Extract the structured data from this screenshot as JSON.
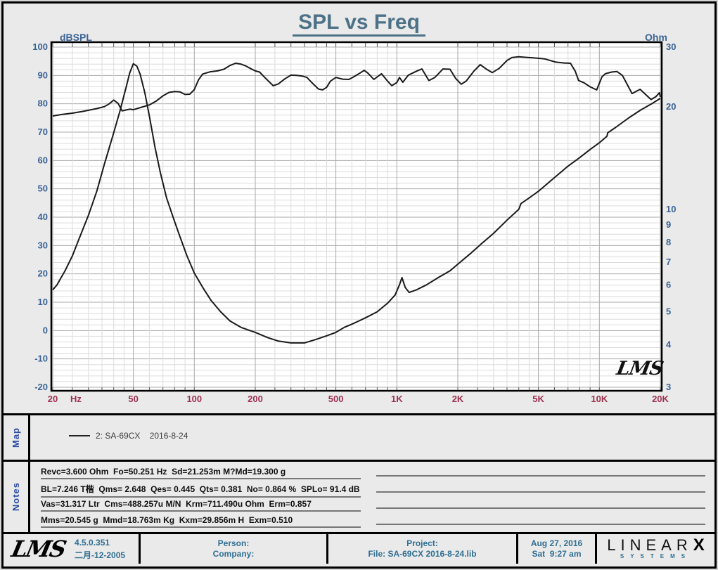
{
  "chart": {
    "title": "SPL vs Freq",
    "left_axis_label": "dBSPL",
    "right_axis_label": "Ohm",
    "signature": "LMS"
  },
  "chart_data": {
    "type": "line",
    "title": "SPL vs Freq",
    "x_axis": {
      "scale": "log",
      "min": 20,
      "max": 20000,
      "unit": "Hz",
      "tick_values": [
        20,
        50,
        100,
        200,
        500,
        1000,
        2000,
        5000,
        10000,
        20000
      ],
      "tick_labels": [
        "20",
        "50",
        "100",
        "200",
        "500",
        "1K",
        "2K",
        "5K",
        "10K",
        "20K"
      ]
    },
    "y_left": {
      "label": "dBSPL",
      "scale": "linear",
      "min": -20,
      "max": 100,
      "major_step": 10,
      "minor_step": 2,
      "ticks": [
        100,
        90,
        80,
        70,
        60,
        50,
        40,
        30,
        20,
        10,
        0,
        -10,
        -20
      ]
    },
    "y_right": {
      "label": "Ohm",
      "scale": "log",
      "min": 3,
      "max": 30,
      "ticks": [
        30,
        20,
        10,
        9,
        8,
        7,
        6,
        5,
        4,
        3
      ]
    },
    "grid": true,
    "legend_position": "map-panel-below-chart",
    "series": [
      {
        "name": "SPL (dBSPL, left axis)",
        "axis": "left",
        "points": [
          [
            20,
            75.7
          ],
          [
            22,
            76.2
          ],
          [
            25,
            76.7
          ],
          [
            28,
            77.3
          ],
          [
            30,
            77.7
          ],
          [
            33,
            78.3
          ],
          [
            36,
            79.0
          ],
          [
            38,
            80.0
          ],
          [
            40,
            81.3
          ],
          [
            42,
            80.2
          ],
          [
            44,
            77.5
          ],
          [
            46,
            77.8
          ],
          [
            48,
            78.1
          ],
          [
            50,
            77.9
          ],
          [
            55,
            78.8
          ],
          [
            60,
            79.6
          ],
          [
            65,
            81.0
          ],
          [
            70,
            82.8
          ],
          [
            75,
            84.0
          ],
          [
            80,
            84.3
          ],
          [
            85,
            84.2
          ],
          [
            90,
            83.3
          ],
          [
            95,
            83.4
          ],
          [
            100,
            85.0
          ],
          [
            105,
            88.5
          ],
          [
            110,
            90.5
          ],
          [
            120,
            91.3
          ],
          [
            130,
            91.6
          ],
          [
            140,
            92.2
          ],
          [
            150,
            93.5
          ],
          [
            160,
            94.3
          ],
          [
            170,
            94.0
          ],
          [
            180,
            93.3
          ],
          [
            190,
            92.4
          ],
          [
            200,
            91.6
          ],
          [
            210,
            91.2
          ],
          [
            225,
            89.0
          ],
          [
            245,
            86.4
          ],
          [
            260,
            87.0
          ],
          [
            280,
            88.8
          ],
          [
            300,
            90.1
          ],
          [
            320,
            90.0
          ],
          [
            340,
            89.8
          ],
          [
            360,
            89.3
          ],
          [
            380,
            87.5
          ],
          [
            410,
            85.2
          ],
          [
            430,
            84.9
          ],
          [
            450,
            85.8
          ],
          [
            470,
            88.0
          ],
          [
            500,
            89.3
          ],
          [
            540,
            88.7
          ],
          [
            580,
            88.6
          ],
          [
            620,
            89.7
          ],
          [
            660,
            90.9
          ],
          [
            690,
            91.8
          ],
          [
            720,
            90.8
          ],
          [
            770,
            88.6
          ],
          [
            840,
            90.6
          ],
          [
            900,
            88.0
          ],
          [
            945,
            86.4
          ],
          [
            1000,
            87.5
          ],
          [
            1030,
            89.3
          ],
          [
            1070,
            87.6
          ],
          [
            1140,
            90.1
          ],
          [
            1250,
            91.5
          ],
          [
            1330,
            92.3
          ],
          [
            1440,
            88.2
          ],
          [
            1540,
            89.3
          ],
          [
            1600,
            90.5
          ],
          [
            1690,
            92.3
          ],
          [
            1830,
            92.2
          ],
          [
            1950,
            89.0
          ],
          [
            2080,
            86.9
          ],
          [
            2200,
            88.0
          ],
          [
            2400,
            91.5
          ],
          [
            2580,
            93.8
          ],
          [
            2800,
            92.0
          ],
          [
            2960,
            91.0
          ],
          [
            3200,
            92.5
          ],
          [
            3500,
            95.3
          ],
          [
            3700,
            96.3
          ],
          [
            4000,
            96.6
          ],
          [
            4300,
            96.4
          ],
          [
            4700,
            96.2
          ],
          [
            5100,
            96.0
          ],
          [
            5400,
            95.8
          ],
          [
            6100,
            94.7
          ],
          [
            6700,
            94.4
          ],
          [
            7200,
            94.3
          ],
          [
            7600,
            91.5
          ],
          [
            7900,
            88.2
          ],
          [
            8400,
            87.4
          ],
          [
            9000,
            86.0
          ],
          [
            9700,
            84.9
          ],
          [
            10300,
            89.5
          ],
          [
            10700,
            90.6
          ],
          [
            11500,
            91.2
          ],
          [
            12200,
            91.4
          ],
          [
            13000,
            90.0
          ],
          [
            13800,
            86.5
          ],
          [
            14500,
            83.6
          ],
          [
            15300,
            84.5
          ],
          [
            15900,
            85.1
          ],
          [
            16800,
            83.5
          ],
          [
            18000,
            81.5
          ],
          [
            19000,
            82.5
          ],
          [
            19800,
            83.9
          ],
          [
            20000,
            82.4
          ]
        ]
      },
      {
        "name": "Impedance (Ohm, right axis)",
        "axis": "right",
        "points": [
          [
            20,
            5.8
          ],
          [
            21,
            6.0
          ],
          [
            22,
            6.3
          ],
          [
            23,
            6.6
          ],
          [
            25,
            7.3
          ],
          [
            27,
            8.2
          ],
          [
            30,
            9.6
          ],
          [
            33,
            11.3
          ],
          [
            36,
            13.6
          ],
          [
            40,
            16.8
          ],
          [
            43,
            19.5
          ],
          [
            46,
            22.8
          ],
          [
            48,
            25.2
          ],
          [
            50,
            26.8
          ],
          [
            52,
            26.4
          ],
          [
            54,
            25.0
          ],
          [
            57,
            22.0
          ],
          [
            60,
            18.8
          ],
          [
            64,
            15.2
          ],
          [
            68,
            12.8
          ],
          [
            73,
            10.8
          ],
          [
            79,
            9.4
          ],
          [
            85,
            8.3
          ],
          [
            92,
            7.3
          ],
          [
            100,
            6.5
          ],
          [
            110,
            5.9
          ],
          [
            121,
            5.4
          ],
          [
            135,
            5.0
          ],
          [
            150,
            4.7
          ],
          [
            170,
            4.5
          ],
          [
            200,
            4.35
          ],
          [
            230,
            4.2
          ],
          [
            260,
            4.1
          ],
          [
            300,
            4.05
          ],
          [
            350,
            4.05
          ],
          [
            400,
            4.15
          ],
          [
            450,
            4.25
          ],
          [
            500,
            4.35
          ],
          [
            550,
            4.5
          ],
          [
            600,
            4.6
          ],
          [
            650,
            4.7
          ],
          [
            700,
            4.8
          ],
          [
            800,
            5.0
          ],
          [
            900,
            5.3
          ],
          [
            980,
            5.6
          ],
          [
            1030,
            6.0
          ],
          [
            1060,
            6.3
          ],
          [
            1100,
            5.9
          ],
          [
            1150,
            5.7
          ],
          [
            1250,
            5.8
          ],
          [
            1400,
            6.0
          ],
          [
            1600,
            6.3
          ],
          [
            1830,
            6.6
          ],
          [
            2000,
            6.9
          ],
          [
            2300,
            7.4
          ],
          [
            2600,
            7.9
          ],
          [
            3000,
            8.5
          ],
          [
            3500,
            9.3
          ],
          [
            4000,
            10.0
          ],
          [
            4100,
            10.4
          ],
          [
            4500,
            10.8
          ],
          [
            5000,
            11.3
          ],
          [
            6000,
            12.4
          ],
          [
            7000,
            13.4
          ],
          [
            8000,
            14.2
          ],
          [
            9000,
            15.0
          ],
          [
            10000,
            15.7
          ],
          [
            10900,
            16.4
          ],
          [
            11000,
            16.8
          ],
          [
            12000,
            17.4
          ],
          [
            14000,
            18.6
          ],
          [
            16000,
            19.6
          ],
          [
            18000,
            20.4
          ],
          [
            20000,
            21.2
          ]
        ]
      }
    ]
  },
  "map_panel": {
    "label": "Map",
    "legend": {
      "text": "2: SA-69CX    2016-8-24"
    }
  },
  "notes_panel": {
    "label": "Notes",
    "lines": [
      "Revc=3.600 Ohm  Fo=50.251 Hz  Sd=21.253m M?Md=19.300 g",
      "BL=7.246 T楷  Qms= 2.648  Qes= 0.445  Qts= 0.381  No= 0.864 %  SPLo= 91.4 dB",
      "Vas=31.317 Ltr  Cms=488.257u M/N  Krm=711.490u Ohm  Erm=0.857",
      "Mms=20.545 g  Mmd=18.763m Kg  Kxm=29.856m H  Exm=0.510"
    ]
  },
  "footer": {
    "lms_logo": "LMS",
    "version": "4.5.0.351",
    "version_date": "二月-12-2005",
    "person_label": "Person:",
    "company_label": "Company:",
    "project_label": "Project:",
    "file_label": "File: SA-69CX 2016-8-24.lib",
    "date": "Aug 27, 2016",
    "time": "Sat  9:27 am",
    "brand": {
      "name": "LINEAR",
      "x": "X",
      "sub": "SYSTEMS"
    }
  },
  "colors": {
    "title": "#4d7287",
    "left_axis": "#3a6395",
    "right_axis": "#3a6395",
    "x_axis": "#9e3050",
    "curve": "#1a1a1a",
    "grid_minor": "#dcdcdc",
    "grid_major": "#a9a9a9",
    "frame": "#000000",
    "plot_bg": "#ffffff"
  }
}
